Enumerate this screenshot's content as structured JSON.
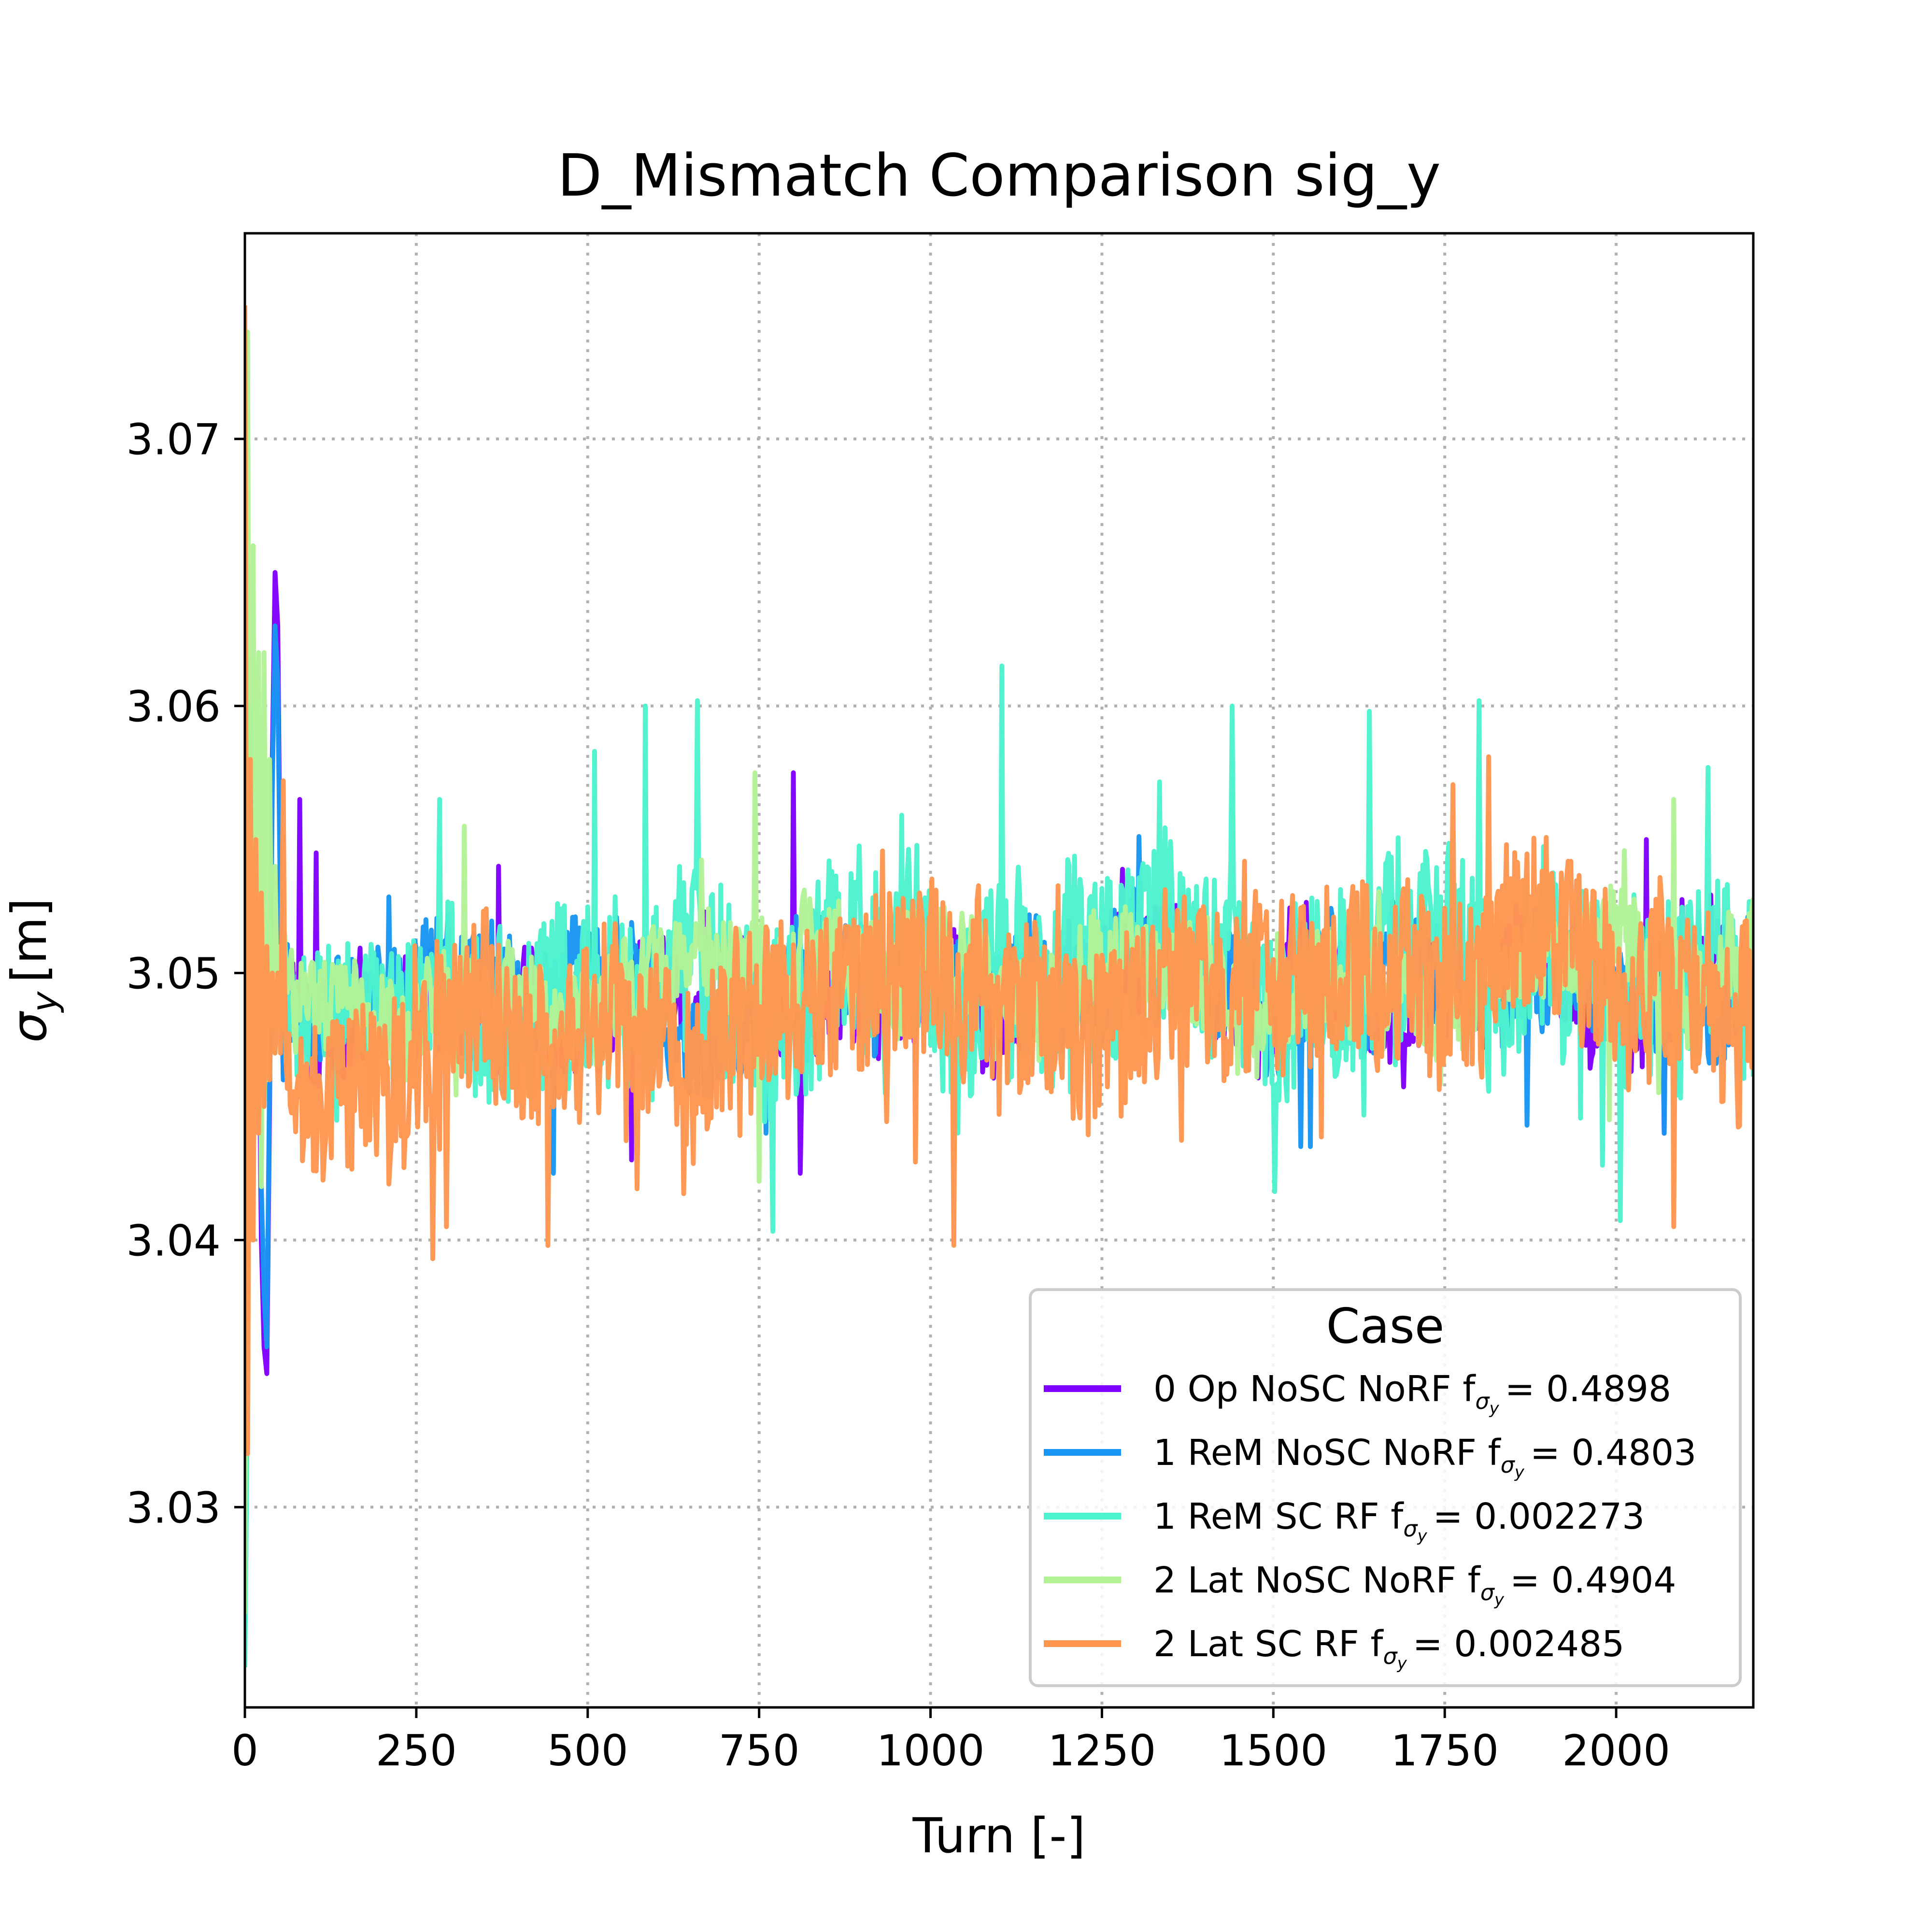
{
  "chart_data": {
    "type": "line",
    "title": "D_Mismatch Comparison sig_y",
    "xlabel": "Turn [-]",
    "ylabel_symbol": "σ",
    "ylabel_subscript": "y",
    "ylabel_unit": "[m]",
    "xlim": [
      0,
      2200
    ],
    "ylim": [
      3.0225,
      3.0777
    ],
    "xticks": [
      0,
      250,
      500,
      750,
      1000,
      1250,
      1500,
      1750,
      2000
    ],
    "xtick_labels": [
      "0",
      "250",
      "500",
      "750",
      "1000",
      "1250",
      "1500",
      "1750",
      "2000"
    ],
    "yticks": [
      3.03,
      3.04,
      3.05,
      3.06,
      3.07
    ],
    "ytick_labels": [
      "3.03",
      "3.04",
      "3.05",
      "3.06",
      "3.07"
    ],
    "grid": true,
    "legend": {
      "title": "Case",
      "placement": "lower right"
    },
    "x_step": 2,
    "series": [
      {
        "name": "0 Op NoSC NoRF",
        "f_label": "0.4898",
        "color": "#8000ff",
        "initial": [
          [
            0,
            3.049
          ],
          [
            4,
            3.058
          ],
          [
            8,
            3.044
          ],
          [
            12,
            3.052
          ],
          [
            16,
            3.046
          ],
          [
            20,
            3.05
          ],
          [
            24,
            3.04
          ],
          [
            28,
            3.036
          ],
          [
            32,
            3.035
          ],
          [
            36,
            3.045
          ],
          [
            40,
            3.058
          ],
          [
            44,
            3.065
          ],
          [
            48,
            3.063
          ],
          [
            52,
            3.052
          ],
          [
            56,
            3.046
          ]
        ],
        "segments": [
          [
            60,
            3.049,
            0.0021,
            0.0018
          ],
          [
            2200,
            3.05,
            0.0021,
            0.0018
          ]
        ],
        "excursions": [
          [
            80,
            3.0565
          ],
          [
            105,
            3.0545
          ],
          [
            370,
            3.054
          ],
          [
            565,
            3.043
          ],
          [
            800,
            3.0575
          ],
          [
            810,
            3.0425
          ],
          [
            2045,
            3.055
          ],
          [
            2070,
            3.044
          ]
        ]
      },
      {
        "name": "1 ReM NoSC NoRF",
        "f_label": "0.4803",
        "color": "#1996f3",
        "initial": [
          [
            0,
            3.048
          ],
          [
            4,
            3.056
          ],
          [
            8,
            3.044
          ],
          [
            12,
            3.052
          ],
          [
            16,
            3.046
          ],
          [
            20,
            3.05
          ],
          [
            24,
            3.042
          ],
          [
            28,
            3.038
          ],
          [
            32,
            3.036
          ],
          [
            36,
            3.046
          ],
          [
            40,
            3.057
          ],
          [
            44,
            3.063
          ],
          [
            48,
            3.061
          ],
          [
            52,
            3.052
          ],
          [
            56,
            3.046
          ]
        ],
        "segments": [
          [
            60,
            3.049,
            0.0021,
            0.0018
          ],
          [
            2200,
            3.05,
            0.0021,
            0.0018
          ]
        ],
        "excursions": [
          [
            450,
            3.0425
          ],
          [
            760,
            3.044
          ],
          [
            1540,
            3.0435
          ],
          [
            1555,
            3.0435
          ],
          [
            1870,
            3.0443
          ],
          [
            2070,
            3.044
          ]
        ]
      },
      {
        "name": "1 ReM SC RF",
        "f_label": "0.002273",
        "color": "#4df3ce",
        "initial": [
          [
            0,
            3.024
          ],
          [
            4,
            3.035
          ],
          [
            8,
            3.06
          ],
          [
            12,
            3.045
          ],
          [
            16,
            3.055
          ],
          [
            20,
            3.047
          ],
          [
            24,
            3.05
          ],
          [
            28,
            3.045
          ],
          [
            32,
            3.048
          ],
          [
            36,
            3.052
          ],
          [
            40,
            3.05
          ],
          [
            44,
            3.047
          ],
          [
            48,
            3.05
          ],
          [
            52,
            3.048
          ],
          [
            56,
            3.05
          ]
        ],
        "segments": [
          [
            60,
            3.048,
            0.0025,
            0.0016
          ],
          [
            450,
            3.049,
            0.0045,
            0.0018
          ],
          [
            1100,
            3.05,
            0.0048,
            0.0018
          ],
          [
            1700,
            3.05,
            0.0045,
            0.0018
          ],
          [
            2200,
            3.05,
            0.0044,
            0.0018
          ]
        ],
        "excursions": [
          [
            285,
            3.0565
          ],
          [
            510,
            3.0583
          ],
          [
            585,
            3.06
          ],
          [
            660,
            3.0602
          ],
          [
            1105,
            3.0615
          ],
          [
            1440,
            3.06
          ],
          [
            1640,
            3.0598
          ],
          [
            1800,
            3.0602
          ],
          [
            1890,
            3.0528
          ],
          [
            1980,
            3.0428
          ],
          [
            2135,
            3.0577
          ]
        ]
      },
      {
        "name": "2 Lat NoSC NoRF",
        "f_label": "0.4904",
        "color": "#b2f396",
        "initial": [
          [
            0,
            3.026
          ],
          [
            4,
            3.074
          ],
          [
            8,
            3.04
          ],
          [
            12,
            3.066
          ],
          [
            16,
            3.045
          ],
          [
            20,
            3.062
          ],
          [
            24,
            3.042
          ],
          [
            28,
            3.062
          ],
          [
            32,
            3.046
          ],
          [
            36,
            3.058
          ],
          [
            40,
            3.048
          ],
          [
            44,
            3.054
          ],
          [
            48,
            3.048
          ],
          [
            52,
            3.051
          ],
          [
            56,
            3.048
          ]
        ],
        "segments": [
          [
            60,
            3.049,
            0.0022,
            0.0018
          ],
          [
            2200,
            3.05,
            0.0022,
            0.0018
          ]
        ],
        "excursions": [
          [
            320,
            3.0555
          ],
          [
            745,
            3.0575
          ],
          [
            750,
            3.0422
          ],
          [
            1990,
            3.0445
          ],
          [
            2085,
            3.0565
          ]
        ]
      },
      {
        "name": "2 Lat SC RF",
        "f_label": "0.002485",
        "color": "#ff964f",
        "initial": [
          [
            0,
            3.075
          ],
          [
            4,
            3.032
          ],
          [
            8,
            3.058
          ],
          [
            12,
            3.04
          ],
          [
            16,
            3.055
          ],
          [
            20,
            3.044
          ],
          [
            24,
            3.053
          ],
          [
            28,
            3.045
          ],
          [
            32,
            3.051
          ],
          [
            36,
            3.046
          ],
          [
            40,
            3.05
          ],
          [
            44,
            3.047
          ],
          [
            48,
            3.05
          ],
          [
            52,
            3.047
          ],
          [
            56,
            3.049
          ]
        ],
        "segments": [
          [
            60,
            3.0475,
            0.0038,
            0.0016
          ],
          [
            500,
            3.048,
            0.0042,
            0.0016
          ],
          [
            1000,
            3.049,
            0.0042,
            0.0016
          ],
          [
            1500,
            3.0495,
            0.0042,
            0.0016
          ],
          [
            2200,
            3.0495,
            0.0042,
            0.0016
          ]
        ],
        "excursions": [
          [
            55,
            3.0572
          ],
          [
            275,
            3.0393
          ],
          [
            295,
            3.0405
          ],
          [
            1035,
            3.0398
          ],
          [
            1815,
            3.0581
          ],
          [
            2085,
            3.0405
          ]
        ]
      }
    ]
  }
}
